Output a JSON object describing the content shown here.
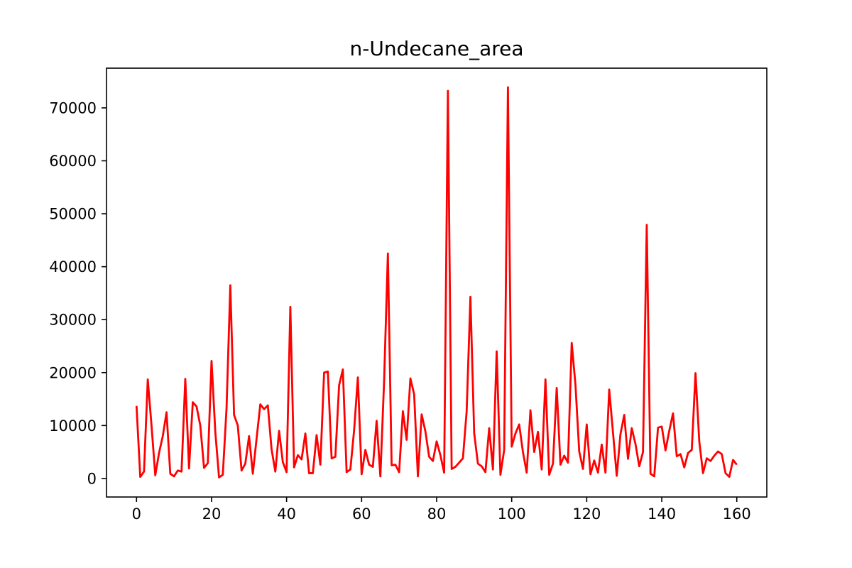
{
  "chart_data": {
    "type": "line",
    "title": "n-Undecane_area",
    "xlabel": "",
    "ylabel": "",
    "xlim": [
      -8,
      168
    ],
    "ylim": [
      -3500,
      77500
    ],
    "xticks": [
      0,
      20,
      40,
      60,
      80,
      100,
      120,
      140,
      160
    ],
    "yticks": [
      0,
      10000,
      20000,
      30000,
      40000,
      50000,
      60000,
      70000
    ],
    "grid": false,
    "series": [
      {
        "color": "#ff0000",
        "x": [
          0,
          1,
          2,
          3,
          4,
          5,
          6,
          7,
          8,
          9,
          10,
          11,
          12,
          13,
          14,
          15,
          16,
          17,
          18,
          19,
          20,
          21,
          22,
          23,
          24,
          25,
          26,
          27,
          28,
          29,
          30,
          31,
          32,
          33,
          34,
          35,
          36,
          37,
          38,
          39,
          40,
          41,
          42,
          43,
          44,
          45,
          46,
          47,
          48,
          49,
          50,
          51,
          52,
          53,
          54,
          55,
          56,
          57,
          58,
          59,
          60,
          61,
          62,
          63,
          64,
          65,
          66,
          67,
          68,
          69,
          70,
          71,
          72,
          73,
          74,
          75,
          76,
          77,
          78,
          79,
          80,
          81,
          82,
          83,
          84,
          85,
          86,
          87,
          88,
          89,
          90,
          91,
          92,
          93,
          94,
          95,
          96,
          97,
          98,
          99,
          100,
          101,
          102,
          103,
          104,
          105,
          106,
          107,
          108,
          109,
          110,
          111,
          112,
          113,
          114,
          115,
          116,
          117,
          118,
          119,
          120,
          121,
          122,
          123,
          124,
          125,
          126,
          127,
          128,
          129,
          130,
          131,
          132,
          133,
          134,
          135,
          136,
          137,
          138,
          139,
          140,
          141,
          142,
          143,
          144,
          145,
          146,
          147,
          148,
          149,
          150,
          151,
          152,
          153,
          154,
          155,
          156,
          157,
          158,
          159,
          160
        ],
        "y": [
          13700,
          300,
          1300,
          18700,
          10000,
          600,
          4800,
          8000,
          12500,
          900,
          400,
          1500,
          1300,
          18800,
          1900,
          14400,
          13600,
          10000,
          2000,
          2900,
          22200,
          8800,
          200,
          700,
          13300,
          36500,
          12000,
          10000,
          1500,
          2800,
          8000,
          900,
          7500,
          14000,
          13100,
          13800,
          5500,
          1300,
          9000,
          3100,
          1200,
          32400,
          2100,
          4400,
          3600,
          8500,
          1000,
          1000,
          8200,
          2600,
          20000,
          20200,
          3800,
          4100,
          17600,
          20600,
          1200,
          1700,
          9100,
          19100,
          800,
          5400,
          2600,
          2200,
          10900,
          400,
          18500,
          42500,
          2500,
          2600,
          1200,
          12700,
          7300,
          18900,
          15900,
          400,
          12100,
          8900,
          4100,
          3300,
          7000,
          4400,
          1100,
          73200,
          1800,
          2200,
          3000,
          3800,
          12700,
          34300,
          8600,
          2800,
          2300,
          1200,
          9500,
          1700,
          24000,
          700,
          5400,
          73900,
          6000,
          8500,
          10200,
          5000,
          1100,
          12900,
          5000,
          8800,
          1700,
          18700,
          700,
          2800,
          17100,
          2600,
          4300,
          3000,
          25600,
          17700,
          5100,
          1800,
          10200,
          800,
          3400,
          1100,
          6400,
          1100,
          16800,
          8700,
          500,
          8400,
          12000,
          3700,
          9500,
          6500,
          2300,
          5000,
          47900,
          900,
          400,
          9600,
          9800,
          5300,
          9000,
          12300,
          4200,
          4600,
          2100,
          4800,
          5400,
          19900,
          7000,
          1000,
          3800,
          3300,
          4300,
          5100,
          4600,
          1000,
          300,
          3500,
          2600
        ]
      }
    ]
  }
}
